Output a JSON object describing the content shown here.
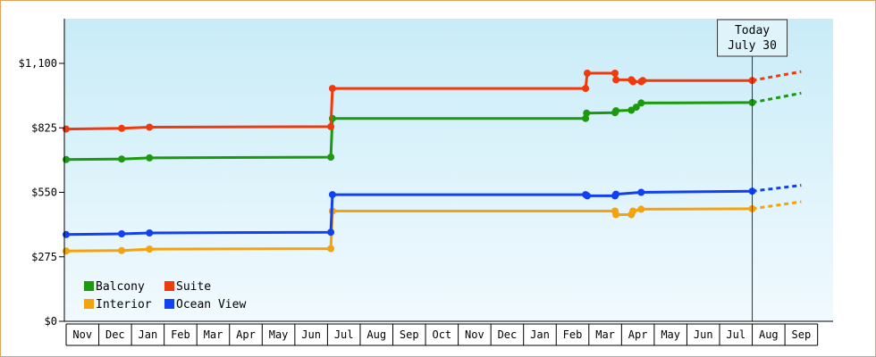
{
  "chart_data": {
    "type": "line",
    "title": "",
    "xlabel": "",
    "ylabel": "",
    "ylim": [
      0,
      1100
    ],
    "yticks": [
      {
        "value": 0,
        "label": "$0"
      },
      {
        "value": 275,
        "label": "$275"
      },
      {
        "value": 550,
        "label": "$550"
      },
      {
        "value": 825,
        "label": "$825"
      },
      {
        "value": 1100,
        "label": "$1,100"
      }
    ],
    "xticks": [
      "Nov",
      "Dec",
      "Jan",
      "Feb",
      "Mar",
      "Apr",
      "May",
      "Jun",
      "Jul",
      "Aug",
      "Sep",
      "Oct",
      "Nov",
      "Dec",
      "Jan",
      "Feb",
      "Mar",
      "Apr",
      "May",
      "Jun",
      "Jul",
      "Aug",
      "Sep"
    ],
    "today_marker": {
      "line1": "Today",
      "line2": "July 30",
      "index": 21.0
    },
    "grid": false,
    "background_gradient": [
      "#c9ecf8",
      "#f1fafe"
    ],
    "legend": {
      "placement": "bottom-left"
    },
    "series": [
      {
        "name": "Balcony",
        "color": "#1b9a0e",
        "points": [
          [
            0.0,
            690
          ],
          [
            1.7,
            692
          ],
          [
            2.55,
            697
          ],
          [
            8.1,
            700
          ],
          [
            8.15,
            865
          ],
          [
            15.9,
            865
          ],
          [
            15.93,
            888
          ],
          [
            16.8,
            890
          ],
          [
            16.83,
            898
          ],
          [
            17.3,
            900
          ],
          [
            17.45,
            913
          ],
          [
            17.6,
            931
          ],
          [
            21.0,
            933
          ]
        ],
        "forecast": [
          [
            21.0,
            933
          ],
          [
            22.5,
            973
          ]
        ]
      },
      {
        "name": "Suite",
        "color": "#f03a0d",
        "points": [
          [
            0.0,
            820
          ],
          [
            1.7,
            823
          ],
          [
            2.55,
            828
          ],
          [
            8.1,
            830
          ],
          [
            8.15,
            993
          ],
          [
            15.9,
            993
          ],
          [
            15.95,
            1058
          ],
          [
            16.8,
            1058
          ],
          [
            16.83,
            1030
          ],
          [
            17.3,
            1030
          ],
          [
            17.35,
            1022
          ],
          [
            17.6,
            1022
          ],
          [
            17.65,
            1027
          ],
          [
            21.0,
            1027
          ]
        ],
        "forecast": [
          [
            21.0,
            1027
          ],
          [
            22.5,
            1065
          ]
        ]
      },
      {
        "name": "Interior",
        "color": "#f6a20c",
        "points": [
          [
            0.0,
            300
          ],
          [
            1.7,
            302
          ],
          [
            2.55,
            308
          ],
          [
            8.1,
            310
          ],
          [
            8.15,
            470
          ],
          [
            16.8,
            470
          ],
          [
            16.83,
            455
          ],
          [
            17.3,
            455
          ],
          [
            17.35,
            470
          ],
          [
            17.6,
            478
          ],
          [
            21.0,
            480
          ]
        ],
        "forecast": [
          [
            21.0,
            480
          ],
          [
            22.5,
            510
          ]
        ]
      },
      {
        "name": "Ocean View",
        "color": "#1141f2",
        "points": [
          [
            0.0,
            370
          ],
          [
            1.7,
            373
          ],
          [
            2.55,
            377
          ],
          [
            8.1,
            380
          ],
          [
            8.15,
            540
          ],
          [
            15.9,
            540
          ],
          [
            15.95,
            535
          ],
          [
            16.8,
            535
          ],
          [
            16.83,
            542
          ],
          [
            17.6,
            550
          ],
          [
            21.0,
            555
          ]
        ],
        "forecast": [
          [
            21.0,
            555
          ],
          [
            22.5,
            580
          ]
        ]
      }
    ]
  }
}
